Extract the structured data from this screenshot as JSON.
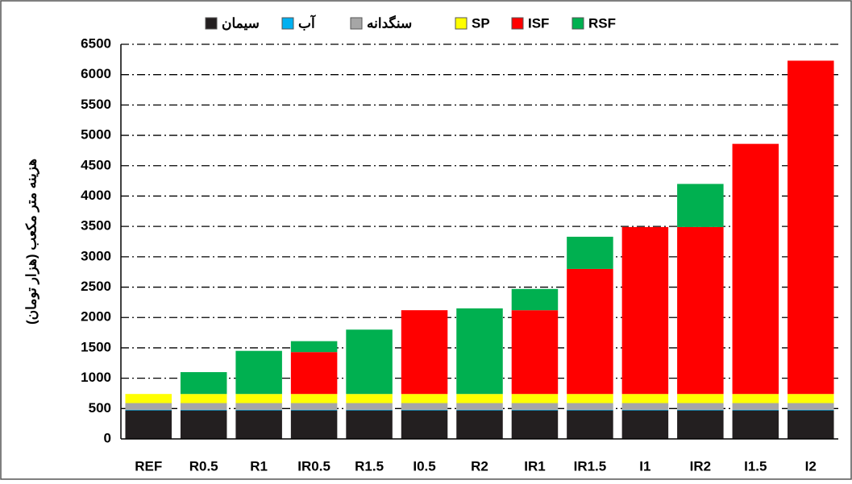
{
  "chart_data": {
    "type": "stacked_bar",
    "y_label": "هزینه متر مکعب (هزار تومان)",
    "categories": [
      "REF",
      "R0.5",
      "R1",
      "IR0.5",
      "R1.5",
      "I0.5",
      "R2",
      "IR1",
      "IR1.5",
      "I1",
      "IR2",
      "I1.5",
      "I2"
    ],
    "series": [
      {
        "name": "سیمان",
        "color": "#231f20",
        "values": [
          470,
          470,
          470,
          470,
          470,
          470,
          470,
          470,
          470,
          470,
          470,
          470,
          470
        ]
      },
      {
        "name": "آب",
        "color": "#00b0f0",
        "values": [
          10,
          10,
          10,
          10,
          10,
          10,
          10,
          10,
          10,
          10,
          10,
          10,
          10
        ]
      },
      {
        "name": "سنگدانه",
        "color": "#a6a6a6",
        "values": [
          110,
          110,
          110,
          110,
          110,
          110,
          110,
          110,
          110,
          110,
          110,
          110,
          110
        ]
      },
      {
        "name": "SP",
        "color": "#ffff00",
        "values": [
          150,
          150,
          150,
          150,
          150,
          150,
          150,
          150,
          150,
          150,
          150,
          150,
          150
        ]
      },
      {
        "name": "ISF",
        "color": "#ff0000",
        "values": [
          0,
          0,
          0,
          690,
          0,
          1380,
          0,
          1380,
          2060,
          2750,
          2750,
          4120,
          5490
        ]
      },
      {
        "name": "RSF",
        "color": "#00b050",
        "values": [
          0,
          360,
          710,
          180,
          1060,
          0,
          1410,
          350,
          530,
          0,
          710,
          0,
          0
        ]
      }
    ],
    "ylim": [
      0,
      6500
    ],
    "yticks": [
      0,
      500,
      1000,
      1500,
      2000,
      2500,
      3000,
      3500,
      4000,
      4500,
      5000,
      5500,
      6000,
      6500
    ],
    "grid": true
  }
}
